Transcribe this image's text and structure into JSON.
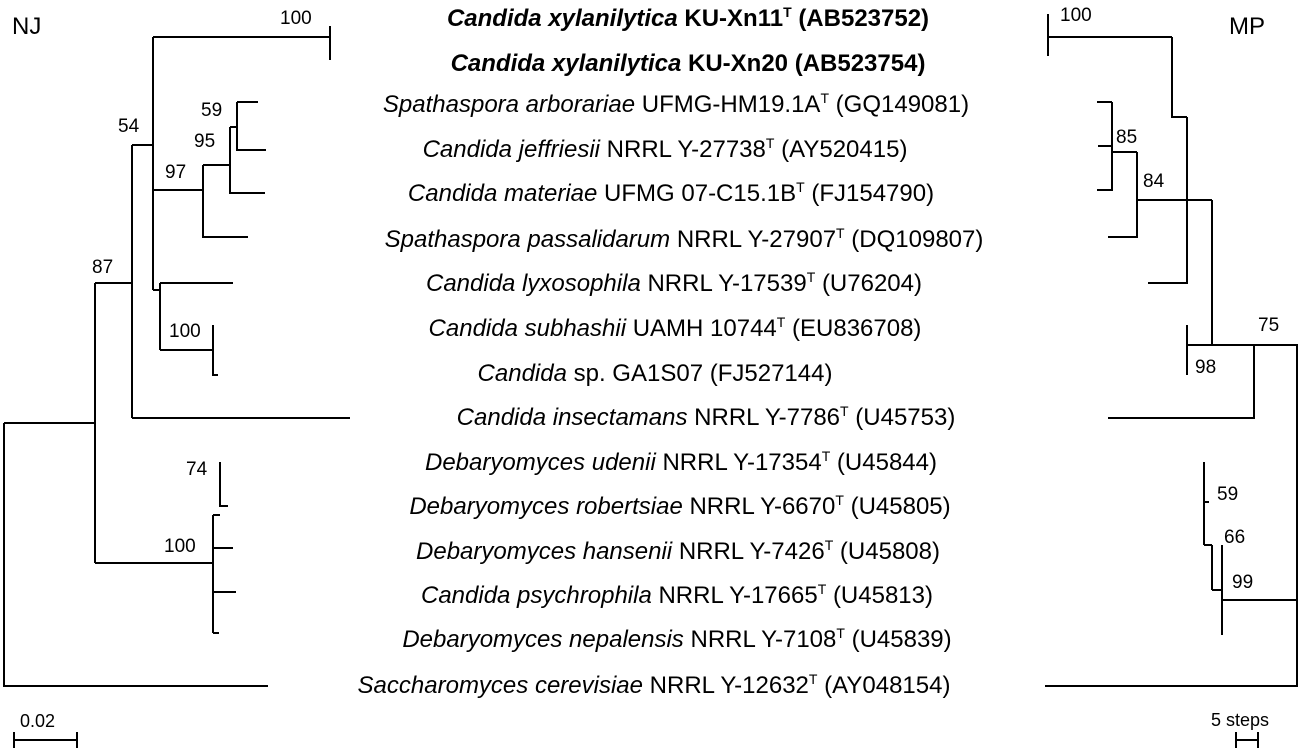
{
  "methods": {
    "left": "NJ",
    "right": "MP"
  },
  "scale_bars": {
    "nj": "0.02",
    "mp": "5 steps"
  },
  "taxa": [
    {
      "species": "Candida xylanilytica",
      "strain": "KU-Xn11",
      "type": "T",
      "accession": "(AB523752)",
      "bold": true
    },
    {
      "species": "Candida xylanilytica",
      "strain": "KU-Xn20",
      "type": "",
      "accession": "(AB523754)",
      "bold": true
    },
    {
      "species": "Spathaspora arborariae",
      "strain": "UFMG-HM19.1A",
      "type": "T",
      "accession": "(GQ149081)",
      "bold": false
    },
    {
      "species": "Candida jeffriesii",
      "strain": "NRRL Y-27738",
      "type": "T",
      "accession": "(AY520415)",
      "bold": false
    },
    {
      "species": "Candida materiae",
      "strain": "UFMG 07-C15.1B",
      "type": "T",
      "accession": "(FJ154790)",
      "bold": false
    },
    {
      "species": "Spathaspora passalidarum",
      "strain": "NRRL Y-27907",
      "type": "T",
      "accession": "(DQ109807)",
      "bold": false
    },
    {
      "species": "Candida lyxosophila",
      "strain": "NRRL Y-17539",
      "type": "T",
      "accession": "(U76204)",
      "bold": false
    },
    {
      "species": "Candida subhashii",
      "strain": "UAMH 10744",
      "type": "T",
      "accession": "(EU836708)",
      "bold": false
    },
    {
      "species": "Candida",
      "strain": "sp. GA1S07",
      "type": "",
      "accession": "(FJ527144)",
      "bold": false
    },
    {
      "species": "Candida insectamans",
      "strain": "NRRL Y-7786",
      "type": "T",
      "accession": "(U45753)",
      "bold": false
    },
    {
      "species": "Debaryomyces udenii",
      "strain": "NRRL Y-17354",
      "type": "T",
      "accession": "(U45844)",
      "bold": false
    },
    {
      "species": "Debaryomyces robertsiae",
      "strain": "NRRL Y-6670",
      "type": "T",
      "accession": "(U45805)",
      "bold": false
    },
    {
      "species": "Debaryomyces hansenii",
      "strain": "NRRL Y-7426",
      "type": "T",
      "accession": "(U45808)",
      "bold": false
    },
    {
      "species": "Candida psychrophila",
      "strain": "NRRL Y-17665",
      "type": "T",
      "accession": "(U45813)",
      "bold": false
    },
    {
      "species": "Debaryomyces nepalensis",
      "strain": "NRRL Y-7108",
      "type": "T",
      "accession": "(U45839)",
      "bold": false
    },
    {
      "species": "Saccharomyces cerevisiae",
      "strain": "NRRL Y-12632",
      "type": "T",
      "accession": "(AY048154)",
      "bold": false
    }
  ],
  "nj_support": [
    "100",
    "54",
    "59",
    "95",
    "97",
    "87",
    "100",
    "74",
    "100"
  ],
  "mp_support": [
    "100",
    "85",
    "84",
    "75",
    "98",
    "59",
    "66",
    "99"
  ]
}
